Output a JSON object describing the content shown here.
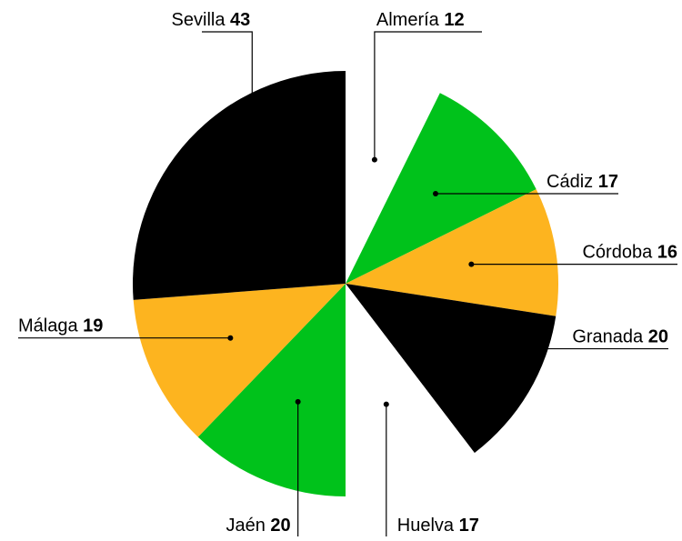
{
  "chart_data": {
    "type": "pie",
    "categories": [
      "Almería",
      "Cádiz",
      "Córdoba",
      "Granada",
      "Huelva",
      "Jaén",
      "Málaga",
      "Sevilla"
    ],
    "values": [
      12,
      17,
      16,
      20,
      17,
      20,
      19,
      43
    ],
    "colors": [
      "#ffffff",
      "#00c21b",
      "#fdb41f",
      "#000000",
      "#ffffff",
      "#00c21b",
      "#fdb41f",
      "#000000"
    ]
  }
}
